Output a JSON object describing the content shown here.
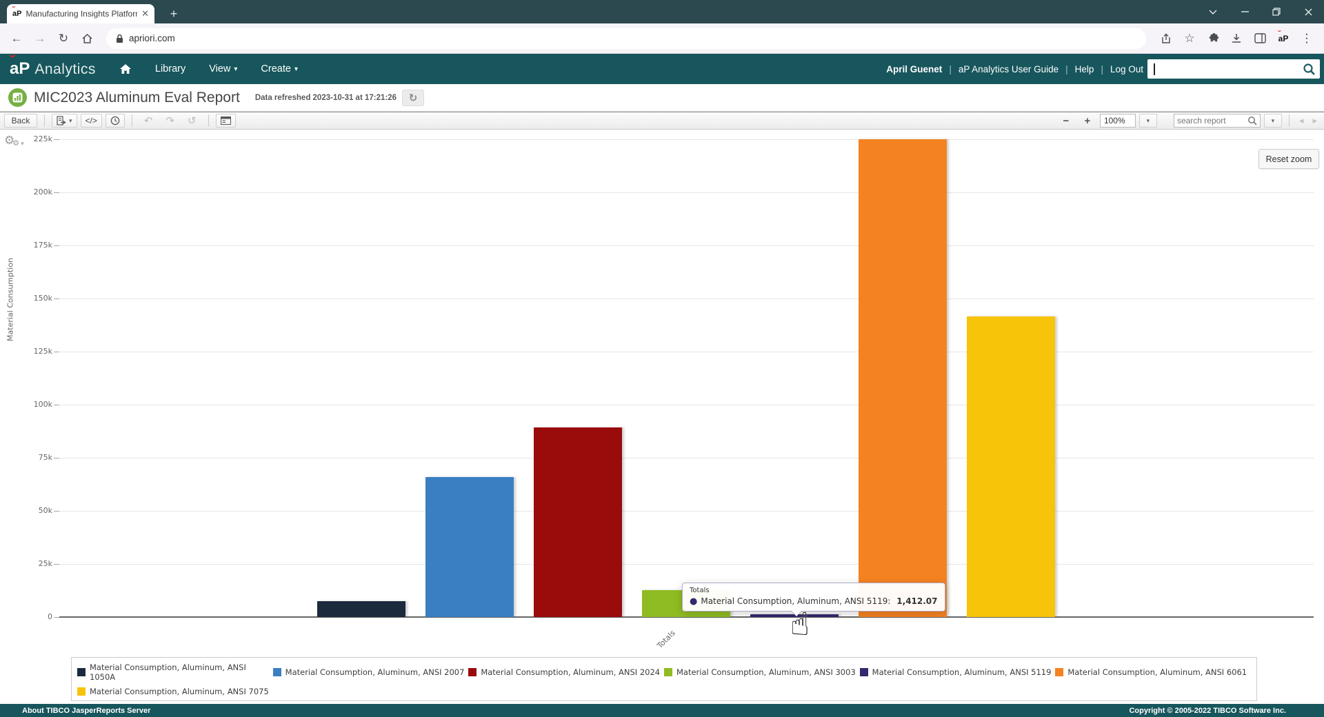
{
  "browser": {
    "tab_title": "Manufacturing Insights Platform",
    "url": "apriori.com",
    "favicon": "aP",
    "profile": "aP"
  },
  "navbar": {
    "logo_primary": "aP",
    "logo_secondary": "Analytics",
    "menu": {
      "library": "Library",
      "view": "View",
      "create": "Create"
    },
    "user_name": "April Guenet",
    "user_guide": "aP Analytics User Guide",
    "help": "Help",
    "logout": "Log Out"
  },
  "report": {
    "title": "MIC2023 Aluminum Eval Report",
    "refreshed": "Data refreshed 2023-10-31 at 17:21:26"
  },
  "toolbar": {
    "back": "Back",
    "code": "</>",
    "zoom": "100%",
    "search_placeholder": "search report"
  },
  "chart": {
    "reset_zoom": "Reset zoom",
    "tooltip": {
      "header": "Totals",
      "series_label": "Material Consumption, Aluminum, ANSI 5119",
      "value": "1,412.07"
    }
  },
  "footer": {
    "about": "About TIBCO JasperReports Server",
    "copyright": "Copyright © 2005-2022 TIBCO Software Inc."
  },
  "chart_data": {
    "type": "bar",
    "title": "",
    "categories": [
      "Totals"
    ],
    "series": [
      {
        "name": "Material Consumption, Aluminum, ANSI 1050A",
        "color": "#1b2b3d",
        "values": [
          7500
        ]
      },
      {
        "name": "Material Consumption, Aluminum, ANSI 2007",
        "color": "#3a7fc2",
        "values": [
          66000
        ]
      },
      {
        "name": "Material Consumption, Aluminum, ANSI 2024",
        "color": "#9a0b0b",
        "values": [
          89300
        ]
      },
      {
        "name": "Material Consumption, Aluminum, ANSI 3003",
        "color": "#8fbc22",
        "values": [
          12700
        ]
      },
      {
        "name": "Material Consumption, Aluminum, ANSI 5119",
        "color": "#37276e",
        "values": [
          1412.07
        ]
      },
      {
        "name": "Material Consumption, Aluminum, ANSI 6061",
        "color": "#f58220",
        "values": [
          231000
        ],
        "clipped_at_plot_top": true
      },
      {
        "name": "Material Consumption, Aluminum, ANSI 7075",
        "color": "#f6c50a",
        "values": [
          141600
        ]
      }
    ],
    "xlabel": "",
    "ylabel": "Material Consumption",
    "ylim": [
      0,
      225000
    ],
    "yticks": [
      "0",
      "25k",
      "50k",
      "75k",
      "100k",
      "125k",
      "150k",
      "175k",
      "200k",
      "225k"
    ],
    "grid": true,
    "legend_position": "bottom"
  }
}
